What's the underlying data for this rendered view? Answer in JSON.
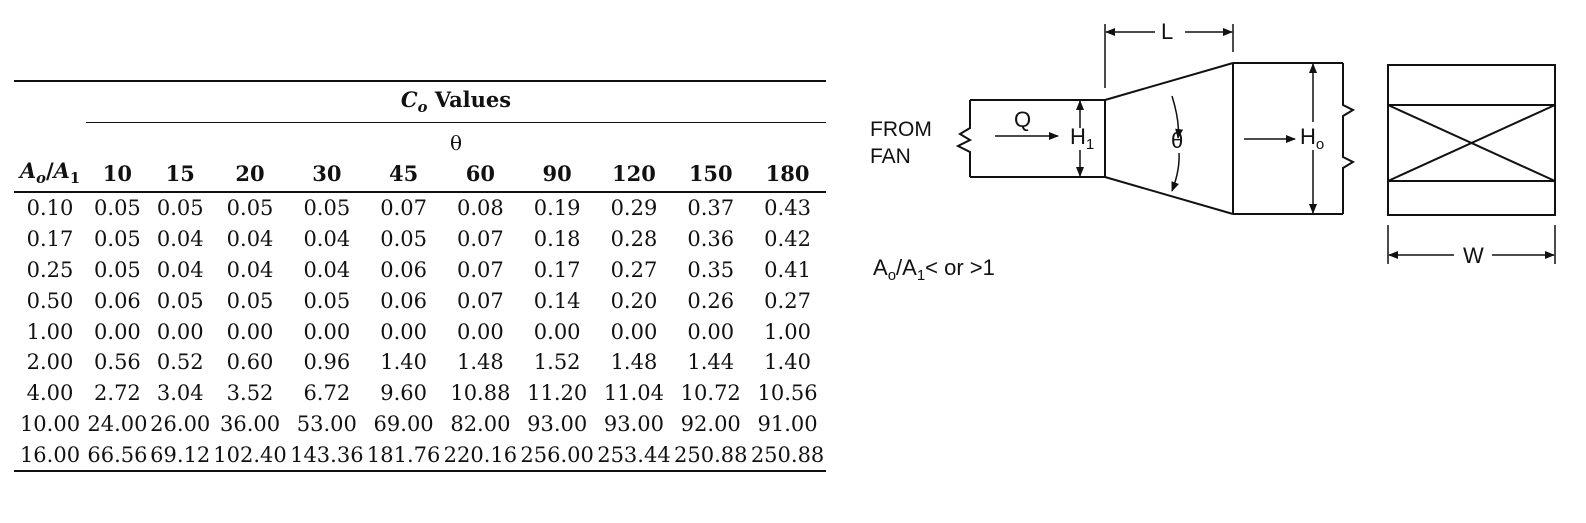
{
  "table": {
    "title_symbol": "C",
    "title_subscript": "o",
    "title_rest": " Values",
    "theta_label": "θ",
    "first_col_header": {
      "a": "A",
      "a_sub": "o",
      "slash": "/",
      "b": "A",
      "b_sub": "1"
    },
    "angle_headers": [
      "10",
      "15",
      "20",
      "30",
      "45",
      "60",
      "90",
      "120",
      "150",
      "180"
    ],
    "rows": [
      {
        "ratio": "0.10",
        "values": [
          "0.05",
          "0.05",
          "0.05",
          "0.05",
          "0.07",
          "0.08",
          "0.19",
          "0.29",
          "0.37",
          "0.43"
        ]
      },
      {
        "ratio": "0.17",
        "values": [
          "0.05",
          "0.04",
          "0.04",
          "0.04",
          "0.05",
          "0.07",
          "0.18",
          "0.28",
          "0.36",
          "0.42"
        ]
      },
      {
        "ratio": "0.25",
        "values": [
          "0.05",
          "0.04",
          "0.04",
          "0.04",
          "0.06",
          "0.07",
          "0.17",
          "0.27",
          "0.35",
          "0.41"
        ]
      },
      {
        "ratio": "0.50",
        "values": [
          "0.06",
          "0.05",
          "0.05",
          "0.05",
          "0.06",
          "0.07",
          "0.14",
          "0.20",
          "0.26",
          "0.27"
        ]
      },
      {
        "ratio": "1.00",
        "values": [
          "0.00",
          "0.00",
          "0.00",
          "0.00",
          "0.00",
          "0.00",
          "0.00",
          "0.00",
          "0.00",
          "1.00"
        ]
      },
      {
        "ratio": "2.00",
        "values": [
          "0.56",
          "0.52",
          "0.60",
          "0.96",
          "1.40",
          "1.48",
          "1.52",
          "1.48",
          "1.44",
          "1.40"
        ]
      },
      {
        "ratio": "4.00",
        "values": [
          "2.72",
          "3.04",
          "3.52",
          "6.72",
          "9.60",
          "10.88",
          "11.20",
          "11.04",
          "10.72",
          "10.56"
        ]
      },
      {
        "ratio": "10.00",
        "values": [
          "24.00",
          "26.00",
          "36.00",
          "53.00",
          "69.00",
          "82.00",
          "93.00",
          "93.00",
          "92.00",
          "91.00"
        ]
      },
      {
        "ratio": "16.00",
        "values": [
          "66.56",
          "69.12",
          "102.40",
          "143.36",
          "181.76",
          "220.16",
          "256.00",
          "253.44",
          "250.88",
          "250.88"
        ]
      }
    ]
  },
  "diagram": {
    "label_from": "FROM",
    "label_fan": "FAN",
    "label_q": "Q",
    "label_h1": "H",
    "label_h1_sub": "1",
    "label_theta": "θ",
    "label_ho": "H",
    "label_ho_sub": "o",
    "label_l": "L",
    "label_w": "W",
    "ratio_note": {
      "a": "A",
      "a_sub": "o",
      "slash": "/A",
      "b_sub": "1",
      "rest": "< or >1"
    }
  }
}
